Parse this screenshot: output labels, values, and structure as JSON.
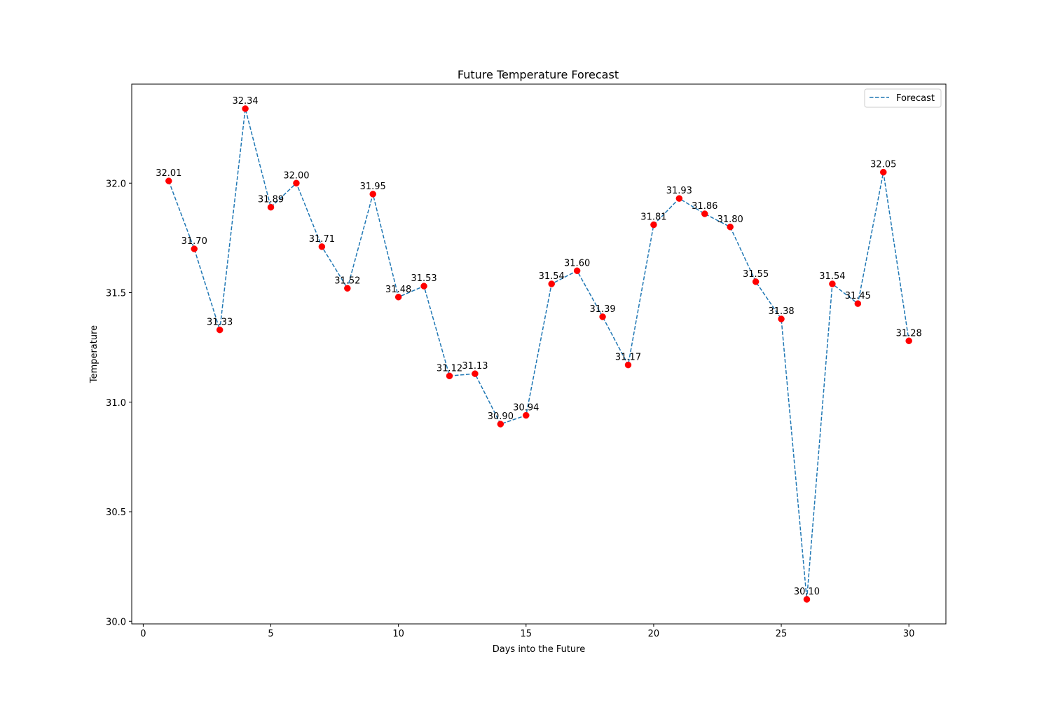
{
  "chart_data": {
    "type": "line",
    "title": "Future Temperature Forecast",
    "xlabel": "Days into the Future",
    "ylabel": "Temperature",
    "xlim": [
      -0.45,
      31.45
    ],
    "ylim": [
      29.988,
      32.452
    ],
    "x_ticks": [
      0,
      5,
      10,
      15,
      20,
      25,
      30
    ],
    "x_tick_labels": [
      "0",
      "5",
      "10",
      "15",
      "20",
      "25",
      "30"
    ],
    "y_ticks": [
      30.0,
      30.5,
      31.0,
      31.5,
      32.0
    ],
    "y_tick_labels": [
      "30.0",
      "30.5",
      "31.0",
      "31.5",
      "32.0"
    ],
    "grid": false,
    "legend": {
      "position": "top-right",
      "entries": [
        "Forecast"
      ]
    },
    "series": [
      {
        "name": "Forecast",
        "line_style": "dashed",
        "line_color": "#1f77b4",
        "marker_color": "#ff0000",
        "x": [
          1,
          2,
          3,
          4,
          5,
          6,
          7,
          8,
          9,
          10,
          11,
          12,
          13,
          14,
          15,
          16,
          17,
          18,
          19,
          20,
          21,
          22,
          23,
          24,
          25,
          26,
          27,
          28,
          29,
          30
        ],
        "y": [
          32.01,
          31.7,
          31.33,
          32.34,
          31.89,
          32.0,
          31.71,
          31.52,
          31.95,
          31.48,
          31.53,
          31.12,
          31.13,
          30.9,
          30.94,
          31.54,
          31.6,
          31.39,
          31.17,
          31.81,
          31.93,
          31.86,
          31.8,
          31.55,
          31.38,
          30.1,
          31.54,
          31.45,
          32.05,
          31.28
        ],
        "labels": [
          "32.01",
          "31.70",
          "31.33",
          "32.34",
          "31.89",
          "32.00",
          "31.71",
          "31.52",
          "31.95",
          "31.48",
          "31.53",
          "31.12",
          "31.13",
          "30.90",
          "30.94",
          "31.54",
          "31.60",
          "31.39",
          "31.17",
          "31.81",
          "31.93",
          "31.86",
          "31.80",
          "31.55",
          "31.38",
          "30.10",
          "31.54",
          "31.45",
          "32.05",
          "31.28"
        ]
      }
    ]
  }
}
